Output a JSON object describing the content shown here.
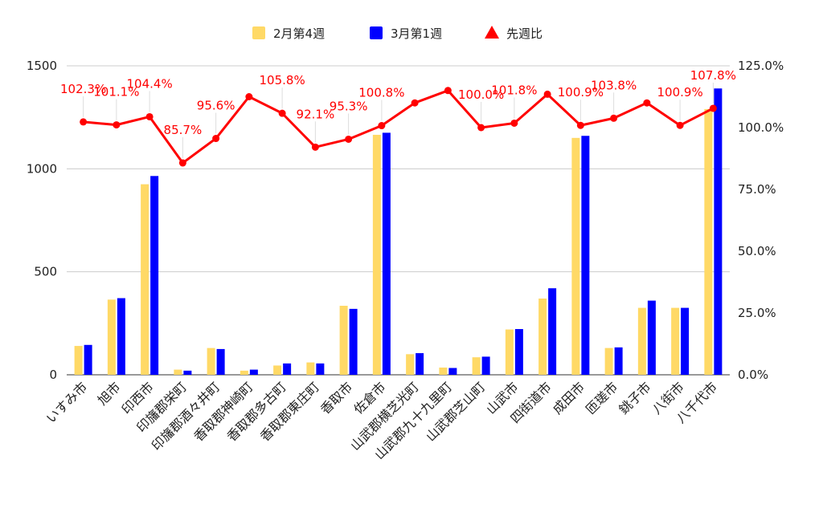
{
  "chart_data": {
    "type": "bar",
    "categories": [
      "いすみ市",
      "旭市",
      "印西市",
      "印旛郡栄町",
      "印旛郡酒々井町",
      "香取郡神崎町",
      "香取郡多古町",
      "香取郡東庄町",
      "香取市",
      "佐倉市",
      "山武郡横芝光町",
      "山武郡九十九里町",
      "山武郡芝山町",
      "山武市",
      "四街道市",
      "成田市",
      "匝瑳市",
      "銚子市",
      "八街市",
      "八千代市"
    ],
    "series": [
      {
        "name": "2月第4週",
        "type": "bar",
        "axis": "left",
        "color": "#ffd966",
        "values": [
          140,
          365,
          925,
          25,
          130,
          20,
          45,
          60,
          335,
          1165,
          100,
          35,
          85,
          220,
          370,
          1150,
          130,
          325,
          325,
          1290
        ]
      },
      {
        "name": "3月第1週",
        "type": "bar",
        "axis": "left",
        "color": "#0000ff",
        "values": [
          145,
          372,
          965,
          20,
          125,
          25,
          55,
          55,
          320,
          1175,
          105,
          33,
          88,
          222,
          420,
          1160,
          133,
          360,
          325,
          1390
        ]
      },
      {
        "name": "先週比",
        "type": "line",
        "axis": "right",
        "color": "#ff0000",
        "values": [
          102.3,
          101.1,
          104.4,
          85.7,
          95.6,
          112.5,
          105.8,
          92.1,
          95.3,
          100.8,
          110.0,
          115.0,
          100.0,
          101.8,
          113.5,
          100.9,
          103.8,
          110.0,
          100.9,
          107.8
        ]
      }
    ],
    "data_labels": [
      {
        "index": 0,
        "text": "102.3%"
      },
      {
        "index": 1,
        "text": "101.1%"
      },
      {
        "index": 2,
        "text": "104.4%"
      },
      {
        "index": 3,
        "text": "85.7%"
      },
      {
        "index": 4,
        "text": "95.6%"
      },
      {
        "index": 6,
        "text": "105.8%"
      },
      {
        "index": 7,
        "text": "92.1%"
      },
      {
        "index": 8,
        "text": "95.3%"
      },
      {
        "index": 9,
        "text": "100.8%"
      },
      {
        "index": 12,
        "text": "100.0%"
      },
      {
        "index": 13,
        "text": "101.8%"
      },
      {
        "index": 15,
        "text": "100.9%"
      },
      {
        "index": 16,
        "text": "103.8%"
      },
      {
        "index": 18,
        "text": "100.9%"
      },
      {
        "index": 19,
        "text": "107.8%"
      }
    ],
    "yleft_ticks": [
      "0",
      "500",
      "1000",
      "1500"
    ],
    "yleft_lim": [
      0,
      1500
    ],
    "yright_ticks": [
      "0.0%",
      "25.0%",
      "50.0%",
      "75.0%",
      "100.0%",
      "125.0%"
    ],
    "yright_lim": [
      0,
      125
    ],
    "grid": true,
    "legend_position": "top"
  }
}
